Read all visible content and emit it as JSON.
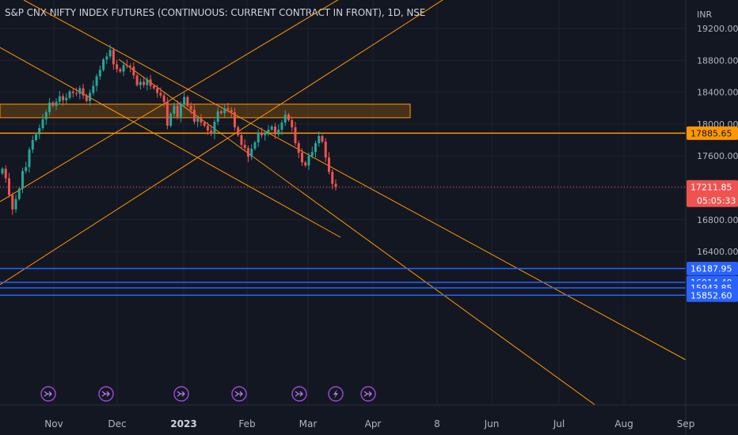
{
  "chart_data": {
    "type": "candlestick",
    "title": "S&P CNX NIFTY INDEX FUTURES (CONTINUOUS: CURRENT CONTRACT IN FRONT), 1D, NSE",
    "currency": "INR",
    "y_ticks": [
      "19200.00",
      "18800.00",
      "18400.00",
      "18000.00",
      "17600.00",
      "17200.00",
      "16800.00",
      "16400.00"
    ],
    "x_ticks": [
      "Nov",
      "Dec",
      "2023",
      "Feb",
      "Mar",
      "Apr",
      "8",
      "Jun",
      "Jul",
      "Aug",
      "Sep"
    ],
    "last_price": {
      "value": "17211.85",
      "countdown": "05:05:33"
    },
    "price_labels": [
      {
        "value": "17885.65",
        "color": "#ff9800"
      },
      {
        "value": "16187.95",
        "color": "#2962ff"
      },
      {
        "value": "16014.40",
        "color": "#2962ff"
      },
      {
        "value": "15943.85",
        "color": "#2962ff"
      },
      {
        "value": "15852.60",
        "color": "#2962ff"
      }
    ],
    "horizontal_lines": [
      {
        "price": 17885.65,
        "color": "#ff9800"
      },
      {
        "price": 16187.95,
        "color": "#2962ff"
      },
      {
        "price": 16014.4,
        "color": "#2962ff"
      },
      {
        "price": 15943.85,
        "color": "#2962ff"
      },
      {
        "price": 15852.6,
        "color": "#2962ff"
      }
    ],
    "zone": {
      "top": 18250,
      "bottom": 18080,
      "color": "#ff9800"
    },
    "colors": {
      "up": "#26a69a",
      "down": "#ef5350",
      "line": "#ff9800",
      "bg": "#131722"
    },
    "events": [
      {
        "date": "Nov 1",
        "icon": "split-icon"
      },
      {
        "date": "Dec 1",
        "icon": "split-icon"
      },
      {
        "date": "Jan 1",
        "icon": "split-icon"
      },
      {
        "date": "Feb 1",
        "icon": "split-icon"
      },
      {
        "date": "Mar 1",
        "icon": "split-icon"
      },
      {
        "date": "Mar 8",
        "icon": "lightning-icon"
      },
      {
        "date": "Mar 20",
        "icon": "split-icon"
      }
    ],
    "closes": [
      17440,
      17320,
      17110,
      16930,
      17060,
      17190,
      17410,
      17460,
      17680,
      17800,
      17870,
      17950,
      18060,
      18150,
      18270,
      18230,
      18280,
      18350,
      18300,
      18330,
      18410,
      18390,
      18380,
      18450,
      18360,
      18290,
      18390,
      18480,
      18600,
      18680,
      18810,
      18850,
      18930,
      18750,
      18690,
      18660,
      18740,
      18730,
      18720,
      18610,
      18490,
      18530,
      18490,
      18560,
      18480,
      18450,
      18390,
      18360,
      18280,
      17980,
      18130,
      18230,
      18090,
      18250,
      18340,
      18230,
      18180,
      18030,
      18070,
      18020,
      17980,
      17920,
      17880,
      18030,
      18160,
      18140,
      18200,
      18180,
      18150,
      17960,
      17860,
      17740,
      17700,
      17590,
      17690,
      17770,
      17890,
      17860,
      17890,
      17930,
      17970,
      17870,
      17930,
      18020,
      18120,
      18050,
      17960,
      17760,
      17640,
      17520,
      17480,
      17600,
      17650,
      17760,
      17850,
      17780,
      17580,
      17400,
      17250,
      17211.85
    ]
  }
}
